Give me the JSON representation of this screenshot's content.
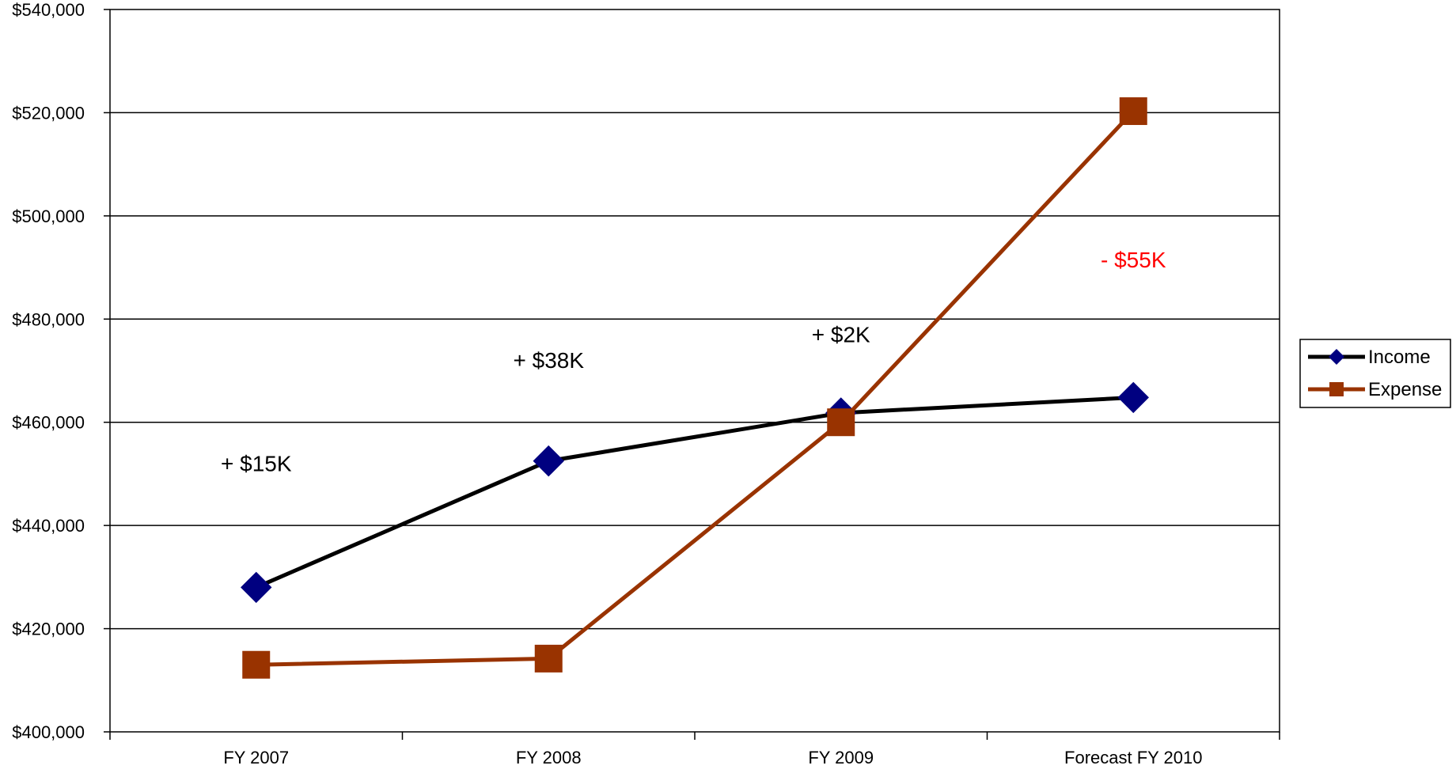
{
  "chart_data": {
    "type": "line",
    "title": "",
    "xlabel": "",
    "ylabel": "",
    "categories": [
      "FY 2007",
      "FY 2008",
      "FY 2009",
      "Forecast FY 2010"
    ],
    "ylim": [
      400000,
      540000
    ],
    "yticks": [
      400000,
      420000,
      440000,
      460000,
      480000,
      500000,
      520000,
      540000
    ],
    "ytick_labels": [
      "$400,000",
      "$420,000",
      "$440,000",
      "$460,000",
      "$480,000",
      "$500,000",
      "$520,000",
      "$540,000"
    ],
    "grid": "horizontal",
    "legend_position": "right",
    "series": [
      {
        "name": "Income",
        "values": [
          428000,
          452500,
          461800,
          464800
        ],
        "color": "#000000",
        "marker": "diamond",
        "marker_color": "#000080"
      },
      {
        "name": "Expense",
        "values": [
          413000,
          414200,
          460000,
          520300
        ],
        "color": "#993300",
        "marker": "square",
        "marker_color": "#993300"
      }
    ],
    "annotations": [
      {
        "text": "+ $15K",
        "x": "FY 2007",
        "y": 450500,
        "color": "#000000"
      },
      {
        "text": "+ $38K",
        "x": "FY 2008",
        "y": 470500,
        "color": "#000000"
      },
      {
        "text": "+ $2K",
        "x": "FY 2009",
        "y": 475500,
        "color": "#000000"
      },
      {
        "text": "- $55K",
        "x": "Forecast FY 2010",
        "y": 490000,
        "color": "#ff0000"
      }
    ]
  }
}
